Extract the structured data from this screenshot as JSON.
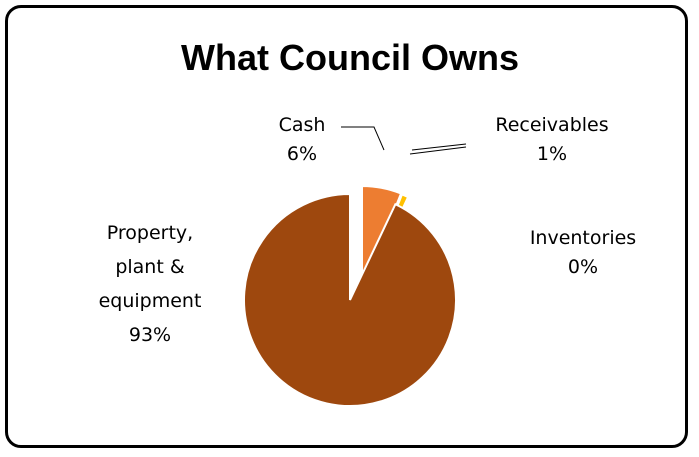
{
  "chart_data": {
    "type": "pie",
    "title": "What Council Owns",
    "slices": [
      {
        "name": "Cash",
        "label_lines": [
          "Cash",
          "6%"
        ],
        "value": 6,
        "color": "#ed7d31"
      },
      {
        "name": "Receivables",
        "label_lines": [
          "Receivables",
          "1%"
        ],
        "value": 1,
        "color": "#ffc000"
      },
      {
        "name": "Inventories",
        "label_lines": [
          "Inventories",
          "0%"
        ],
        "value": 0.05,
        "color": "#c9a200"
      },
      {
        "name": "Property, plant & equipment",
        "label_lines": [
          "Property,",
          "plant &",
          "equipment",
          "93%"
        ],
        "value": 93,
        "color": "#9e480e"
      }
    ],
    "exploded": true,
    "legend": "none"
  }
}
